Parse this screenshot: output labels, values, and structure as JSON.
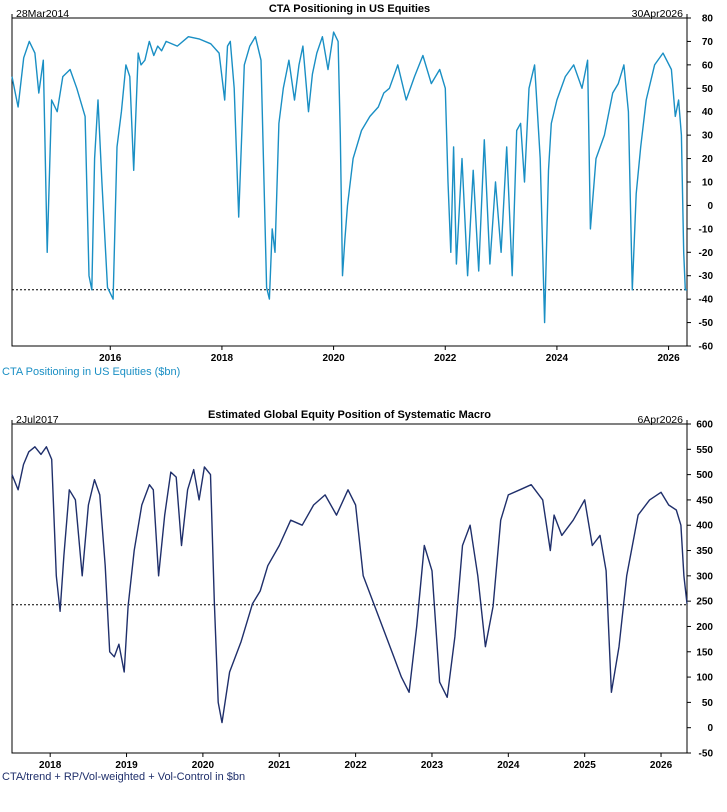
{
  "chart_data": [
    {
      "type": "line",
      "title": "CTA Positioning in US Equities",
      "start_label": "28Mar2014",
      "end_label": "30Apr2026",
      "legend": "CTA Positioning in US Equities ($bn)",
      "color": "#1a8fc4",
      "ylim": [
        -60,
        80
      ],
      "yticks": [
        80,
        70,
        60,
        50,
        40,
        30,
        20,
        10,
        0,
        -10,
        -20,
        -30,
        -40,
        -50,
        -60
      ],
      "xlim": [
        2014.24,
        2026.33
      ],
      "xticks": [
        2016,
        2018,
        2020,
        2022,
        2024,
        2026
      ],
      "reference_line": -36,
      "series": [
        {
          "name": "CTA Positioning in US Equities ($bn)",
          "x": [
            2014.24,
            2014.35,
            2014.45,
            2014.55,
            2014.65,
            2014.72,
            2014.8,
            2014.87,
            2014.95,
            2015.05,
            2015.15,
            2015.28,
            2015.4,
            2015.55,
            2015.62,
            2015.67,
            2015.72,
            2015.78,
            2015.85,
            2015.95,
            2016.05,
            2016.12,
            2016.2,
            2016.28,
            2016.35,
            2016.42,
            2016.5,
            2016.55,
            2016.62,
            2016.7,
            2016.78,
            2016.85,
            2016.92,
            2017.0,
            2017.2,
            2017.4,
            2017.6,
            2017.8,
            2017.95,
            2018.05,
            2018.1,
            2018.15,
            2018.22,
            2018.3,
            2018.4,
            2018.5,
            2018.6,
            2018.7,
            2018.8,
            2018.85,
            2018.9,
            2018.95,
            2019.02,
            2019.1,
            2019.2,
            2019.3,
            2019.38,
            2019.45,
            2019.55,
            2019.62,
            2019.7,
            2019.8,
            2019.9,
            2020.0,
            2020.08,
            2020.12,
            2020.16,
            2020.2,
            2020.25,
            2020.35,
            2020.5,
            2020.65,
            2020.8,
            2020.9,
            2021.0,
            2021.15,
            2021.3,
            2021.45,
            2021.6,
            2021.75,
            2021.9,
            2022.0,
            2022.05,
            2022.1,
            2022.15,
            2022.2,
            2022.3,
            2022.4,
            2022.5,
            2022.6,
            2022.7,
            2022.8,
            2022.9,
            2023.0,
            2023.1,
            2023.2,
            2023.28,
            2023.35,
            2023.42,
            2023.5,
            2023.6,
            2023.7,
            2023.78,
            2023.85,
            2023.9,
            2024.0,
            2024.15,
            2024.3,
            2024.45,
            2024.55,
            2024.6,
            2024.7,
            2024.85,
            2025.0,
            2025.1,
            2025.2,
            2025.28,
            2025.35,
            2025.42,
            2025.5,
            2025.6,
            2025.75,
            2025.9,
            2026.05,
            2026.12,
            2026.18,
            2026.23,
            2026.27,
            2026.3,
            2026.33
          ],
          "values": [
            55,
            42,
            63,
            70,
            65,
            48,
            62,
            -20,
            45,
            40,
            55,
            58,
            50,
            38,
            -30,
            -36,
            20,
            45,
            10,
            -35,
            -40,
            25,
            40,
            60,
            55,
            15,
            65,
            60,
            62,
            70,
            64,
            68,
            66,
            70,
            68,
            72,
            71,
            69,
            65,
            45,
            68,
            70,
            50,
            -5,
            60,
            68,
            72,
            62,
            -35,
            -40,
            -10,
            -20,
            35,
            50,
            62,
            45,
            60,
            68,
            40,
            56,
            65,
            72,
            58,
            74,
            70,
            30,
            -30,
            -15,
            0,
            20,
            32,
            38,
            42,
            48,
            50,
            60,
            45,
            55,
            64,
            52,
            58,
            50,
            10,
            -20,
            25,
            -25,
            20,
            -30,
            15,
            -28,
            28,
            -25,
            10,
            -20,
            25,
            -30,
            32,
            35,
            10,
            50,
            60,
            20,
            -50,
            15,
            35,
            45,
            55,
            60,
            50,
            62,
            -10,
            20,
            30,
            48,
            52,
            60,
            40,
            -36,
            5,
            25,
            45,
            60,
            65,
            58,
            38,
            45,
            30,
            -20,
            -36,
            -36
          ]
        }
      ]
    },
    {
      "type": "line",
      "title": "Estimated Global Equity Position of Systematic Macro",
      "start_label": "2Jul2017",
      "end_label": "6Apr2026",
      "legend": "CTA/trend + RP/Vol-weighted + Vol-Control in $bn",
      "color": "#1f2f6b",
      "ylim": [
        -50,
        600
      ],
      "yticks": [
        600,
        550,
        500,
        450,
        400,
        350,
        300,
        250,
        200,
        150,
        100,
        50,
        0,
        -50
      ],
      "xlim": [
        2017.5,
        2026.34
      ],
      "xticks": [
        2018,
        2019,
        2020,
        2021,
        2022,
        2023,
        2024,
        2025,
        2026
      ],
      "reference_line": 243,
      "series": [
        {
          "name": "CTA/trend + RP/Vol-weighted + Vol-Control in $bn",
          "x": [
            2017.5,
            2017.58,
            2017.65,
            2017.72,
            2017.8,
            2017.88,
            2017.95,
            2018.02,
            2018.08,
            2018.13,
            2018.18,
            2018.25,
            2018.33,
            2018.42,
            2018.5,
            2018.58,
            2018.65,
            2018.72,
            2018.78,
            2018.84,
            2018.9,
            2018.97,
            2019.02,
            2019.1,
            2019.2,
            2019.3,
            2019.35,
            2019.42,
            2019.5,
            2019.58,
            2019.65,
            2019.72,
            2019.8,
            2019.88,
            2019.95,
            2020.02,
            2020.1,
            2020.15,
            2020.2,
            2020.25,
            2020.35,
            2020.5,
            2020.65,
            2020.75,
            2020.85,
            2021.0,
            2021.15,
            2021.3,
            2021.45,
            2021.6,
            2021.75,
            2021.9,
            2022.0,
            2022.1,
            2022.2,
            2022.3,
            2022.4,
            2022.5,
            2022.6,
            2022.7,
            2022.8,
            2022.9,
            2023.0,
            2023.1,
            2023.2,
            2023.3,
            2023.4,
            2023.5,
            2023.6,
            2023.7,
            2023.8,
            2023.9,
            2024.0,
            2024.15,
            2024.3,
            2024.45,
            2024.55,
            2024.6,
            2024.7,
            2024.85,
            2025.0,
            2025.1,
            2025.2,
            2025.28,
            2025.35,
            2025.45,
            2025.55,
            2025.7,
            2025.85,
            2026.0,
            2026.1,
            2026.2,
            2026.26,
            2026.3,
            2026.34
          ],
          "values": [
            500,
            470,
            520,
            545,
            555,
            540,
            555,
            530,
            300,
            230,
            340,
            470,
            450,
            300,
            440,
            490,
            460,
            320,
            150,
            140,
            165,
            110,
            240,
            350,
            440,
            480,
            470,
            300,
            420,
            505,
            495,
            360,
            470,
            510,
            450,
            515,
            500,
            250,
            50,
            10,
            110,
            170,
            245,
            270,
            320,
            360,
            410,
            400,
            440,
            460,
            420,
            470,
            440,
            300,
            260,
            220,
            180,
            140,
            100,
            70,
            200,
            360,
            310,
            90,
            60,
            180,
            360,
            400,
            300,
            160,
            240,
            410,
            460,
            470,
            480,
            450,
            350,
            420,
            380,
            410,
            450,
            360,
            380,
            310,
            70,
            160,
            300,
            420,
            450,
            465,
            440,
            430,
            400,
            300,
            245
          ]
        }
      ]
    }
  ]
}
